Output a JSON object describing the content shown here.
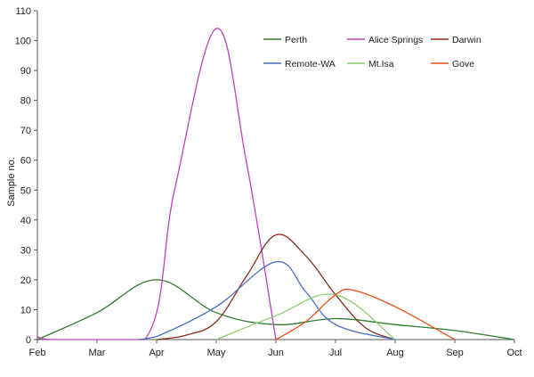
{
  "chart_data": {
    "type": "line",
    "ylabel": "Sample no.",
    "xlabel": "",
    "ylim": [
      0,
      110
    ],
    "yticks": [
      0,
      10,
      20,
      30,
      40,
      50,
      60,
      70,
      80,
      90,
      100,
      110
    ],
    "categories": [
      "Feb",
      "Mar",
      "Apr",
      "May",
      "Jun",
      "Jul",
      "Aug",
      "Sep",
      "Oct"
    ],
    "grid": false,
    "legend_position": "top-right",
    "series": [
      {
        "name": "Perth",
        "color": "#2e7d32",
        "points": [
          [
            0,
            0
          ],
          [
            1,
            9
          ],
          [
            2,
            20
          ],
          [
            3,
            9
          ],
          [
            4,
            5
          ],
          [
            5,
            7
          ],
          [
            6,
            5
          ],
          [
            7,
            3
          ],
          [
            8,
            0
          ]
        ]
      },
      {
        "name": "Alice Springs",
        "color": "#c040c0",
        "points": [
          [
            0,
            1
          ],
          [
            0.3,
            0
          ],
          [
            1.8,
            0
          ],
          [
            2.3,
            50
          ],
          [
            3,
            104
          ],
          [
            3.5,
            60
          ],
          [
            4,
            0
          ]
        ]
      },
      {
        "name": "Darwin",
        "color": "#8b2d1a",
        "points": [
          [
            2,
            0
          ],
          [
            2.5,
            1.5
          ],
          [
            3,
            6
          ],
          [
            3.5,
            21
          ],
          [
            4,
            35
          ],
          [
            4.5,
            28
          ],
          [
            5,
            15
          ],
          [
            5.5,
            4
          ],
          [
            6,
            0
          ]
        ]
      },
      {
        "name": "Remote-WA",
        "color": "#4a6fc4",
        "points": [
          [
            1.7,
            0
          ],
          [
            2,
            1
          ],
          [
            3,
            11
          ],
          [
            4,
            26
          ],
          [
            4.5,
            16
          ],
          [
            5,
            5
          ],
          [
            6,
            0
          ]
        ]
      },
      {
        "name": "Mt.Isa",
        "color": "#8ccc6c",
        "points": [
          [
            3,
            0
          ],
          [
            4,
            8
          ],
          [
            5,
            15
          ],
          [
            6,
            0
          ]
        ]
      },
      {
        "name": "Gove",
        "color": "#f04a10",
        "points": [
          [
            4,
            0
          ],
          [
            4.5,
            6
          ],
          [
            5,
            15
          ],
          [
            5.3,
            16.5
          ],
          [
            6,
            11
          ],
          [
            7,
            0
          ]
        ]
      }
    ]
  }
}
